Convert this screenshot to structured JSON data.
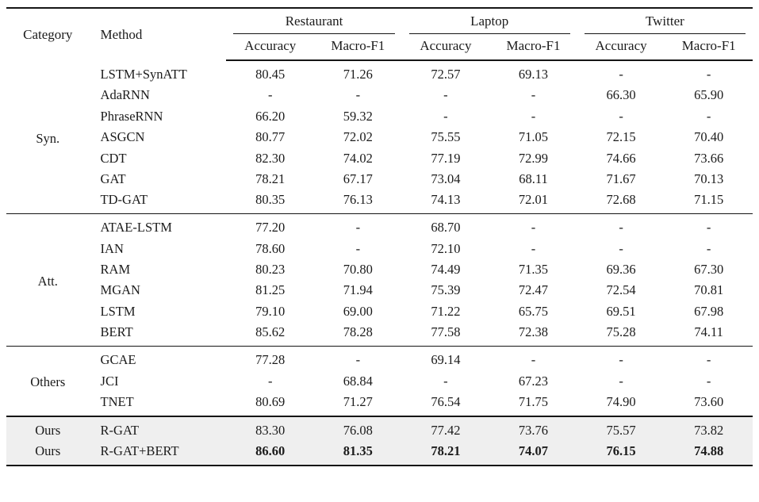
{
  "table": {
    "headers": {
      "category": "Category",
      "method": "Method",
      "groups": [
        {
          "label": "Restaurant",
          "sub": [
            "Accuracy",
            "Macro-F1"
          ]
        },
        {
          "label": "Laptop",
          "sub": [
            "Accuracy",
            "Macro-F1"
          ]
        },
        {
          "label": "Twitter",
          "sub": [
            "Accuracy",
            "Macro-F1"
          ]
        }
      ]
    },
    "sections": [
      {
        "category": "Syn.",
        "highlight": false,
        "repeat_category": false,
        "rows": [
          {
            "method": "LSTM+SynATT",
            "bold": false,
            "values": [
              "80.45",
              "71.26",
              "72.57",
              "69.13",
              "-",
              "-"
            ]
          },
          {
            "method": "AdaRNN",
            "bold": false,
            "values": [
              "-",
              "-",
              "-",
              "-",
              "66.30",
              "65.90"
            ]
          },
          {
            "method": "PhraseRNN",
            "bold": false,
            "values": [
              "66.20",
              "59.32",
              "-",
              "-",
              "-",
              "-"
            ]
          },
          {
            "method": "ASGCN",
            "bold": false,
            "values": [
              "80.77",
              "72.02",
              "75.55",
              "71.05",
              "72.15",
              "70.40"
            ]
          },
          {
            "method": "CDT",
            "bold": false,
            "values": [
              "82.30",
              "74.02",
              "77.19",
              "72.99",
              "74.66",
              "73.66"
            ]
          },
          {
            "method": "GAT",
            "bold": false,
            "values": [
              "78.21",
              "67.17",
              "73.04",
              "68.11",
              "71.67",
              "70.13"
            ]
          },
          {
            "method": "TD-GAT",
            "bold": false,
            "values": [
              "80.35",
              "76.13",
              "74.13",
              "72.01",
              "72.68",
              "71.15"
            ]
          }
        ]
      },
      {
        "category": "Att.",
        "highlight": false,
        "repeat_category": false,
        "rows": [
          {
            "method": "ATAE-LSTM",
            "bold": false,
            "values": [
              "77.20",
              "-",
              "68.70",
              "-",
              "-",
              "-"
            ]
          },
          {
            "method": "IAN",
            "bold": false,
            "values": [
              "78.60",
              "-",
              "72.10",
              "-",
              "-",
              "-"
            ]
          },
          {
            "method": "RAM",
            "bold": false,
            "values": [
              "80.23",
              "70.80",
              "74.49",
              "71.35",
              "69.36",
              "67.30"
            ]
          },
          {
            "method": "MGAN",
            "bold": false,
            "values": [
              "81.25",
              "71.94",
              "75.39",
              "72.47",
              "72.54",
              "70.81"
            ]
          },
          {
            "method": "LSTM",
            "bold": false,
            "values": [
              "79.10",
              "69.00",
              "71.22",
              "65.75",
              "69.51",
              "67.98"
            ]
          },
          {
            "method": "BERT",
            "bold": false,
            "values": [
              "85.62",
              "78.28",
              "77.58",
              "72.38",
              "75.28",
              "74.11"
            ]
          }
        ]
      },
      {
        "category": "Others",
        "highlight": false,
        "repeat_category": false,
        "rows": [
          {
            "method": "GCAE",
            "bold": false,
            "values": [
              "77.28",
              "-",
              "69.14",
              "-",
              "-",
              "-"
            ]
          },
          {
            "method": "JCI",
            "bold": false,
            "values": [
              "-",
              "68.84",
              "-",
              "67.23",
              "-",
              "-"
            ]
          },
          {
            "method": "TNET",
            "bold": false,
            "values": [
              "80.69",
              "71.27",
              "76.54",
              "71.75",
              "74.90",
              "73.60"
            ]
          }
        ]
      },
      {
        "category": "Ours",
        "highlight": true,
        "repeat_category": true,
        "rows": [
          {
            "method": "R-GAT",
            "bold": false,
            "values": [
              "83.30",
              "76.08",
              "77.42",
              "73.76",
              "75.57",
              "73.82"
            ]
          },
          {
            "method": "R-GAT+BERT",
            "bold": true,
            "values": [
              "86.60",
              "81.35",
              "78.21",
              "74.07",
              "76.15",
              "74.88"
            ]
          }
        ]
      }
    ],
    "colors": {
      "highlight_bg": "#efefef",
      "rule": "#151515",
      "text": "#1b1b1b"
    }
  }
}
